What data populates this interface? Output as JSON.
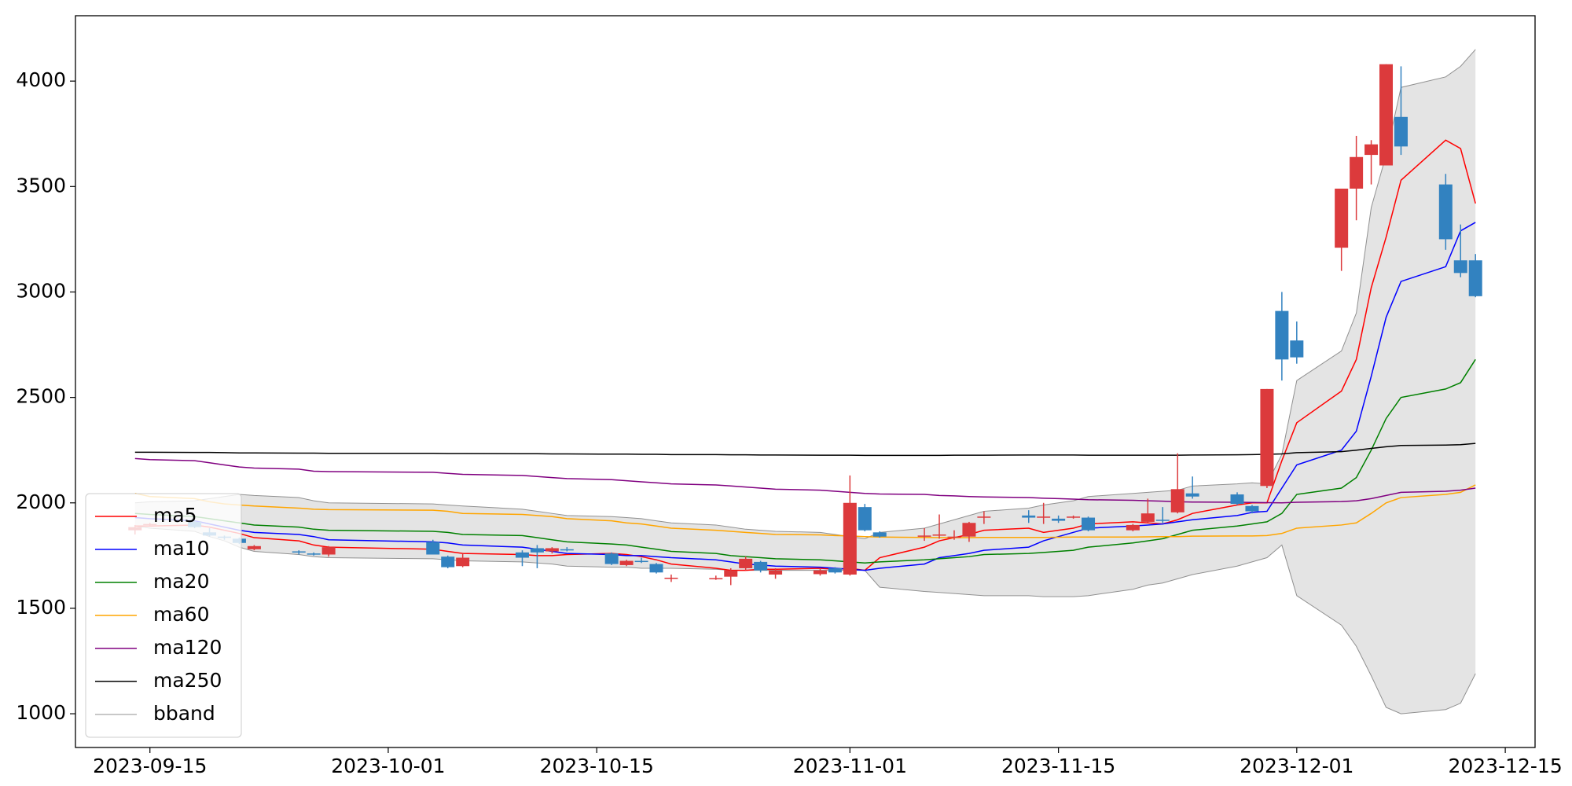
{
  "chart_data": {
    "type": "candlestick",
    "x": [
      "2023-09-14",
      "2023-09-15",
      "2023-09-18",
      "2023-09-19",
      "2023-09-20",
      "2023-09-21",
      "2023-09-22",
      "2023-09-25",
      "2023-09-26",
      "2023-09-27",
      "2023-10-04",
      "2023-10-05",
      "2023-10-06",
      "2023-10-10",
      "2023-10-11",
      "2023-10-12",
      "2023-10-13",
      "2023-10-16",
      "2023-10-17",
      "2023-10-18",
      "2023-10-19",
      "2023-10-20",
      "2023-10-23",
      "2023-10-24",
      "2023-10-25",
      "2023-10-26",
      "2023-10-27",
      "2023-10-30",
      "2023-10-31",
      "2023-11-01",
      "2023-11-02",
      "2023-11-03",
      "2023-11-06",
      "2023-11-07",
      "2023-11-08",
      "2023-11-09",
      "2023-11-10",
      "2023-11-13",
      "2023-11-14",
      "2023-11-15",
      "2023-11-16",
      "2023-11-17",
      "2023-11-20",
      "2023-11-21",
      "2023-11-22",
      "2023-11-23",
      "2023-11-24",
      "2023-11-27",
      "2023-11-28",
      "2023-11-29",
      "2023-11-30",
      "2023-12-01",
      "2023-12-04",
      "2023-12-05",
      "2023-12-06",
      "2023-12-07",
      "2023-12-08",
      "2023-12-11",
      "2023-12-12",
      "2023-12-13"
    ],
    "open": [
      1870,
      1895,
      1910,
      1860,
      1840,
      1830,
      1780,
      1770,
      1760,
      1755,
      1815,
      1745,
      1700,
      1765,
      1785,
      1770,
      1780,
      1760,
      1705,
      1725,
      1710,
      1640,
      1638,
      1650,
      1690,
      1720,
      1660,
      1662,
      1690,
      1660,
      1980,
      1860,
      1840,
      1845,
      1840,
      1840,
      1930,
      1940,
      1930,
      1925,
      1930,
      1930,
      1870,
      1910,
      1920,
      1955,
      2045,
      2040,
      1985,
      2080,
      2910,
      2770,
      3210,
      3490,
      3650,
      3600,
      3830,
      3510,
      3150,
      3150
    ],
    "high": [
      1895,
      1905,
      1915,
      1880,
      1845,
      1835,
      1800,
      1775,
      1765,
      1795,
      1825,
      1750,
      1760,
      1775,
      1800,
      1790,
      1790,
      1765,
      1730,
      1740,
      1715,
      1660,
      1655,
      1690,
      1745,
      1725,
      1690,
      1690,
      1695,
      2130,
      1995,
      1865,
      1880,
      1945,
      1870,
      1910,
      1960,
      1965,
      2000,
      1940,
      1940,
      1935,
      1900,
      2020,
      1980,
      2235,
      2125,
      2050,
      1990,
      2540,
      3000,
      2860,
      3490,
      3740,
      3720,
      4080,
      4070,
      3560,
      3320,
      3180
    ],
    "low": [
      1850,
      1890,
      1880,
      1840,
      1825,
      1805,
      1775,
      1755,
      1750,
      1745,
      1755,
      1690,
      1695,
      1700,
      1690,
      1760,
      1770,
      1705,
      1700,
      1715,
      1665,
      1625,
      1635,
      1610,
      1680,
      1670,
      1640,
      1655,
      1665,
      1655,
      1865,
      1835,
      1820,
      1830,
      1825,
      1815,
      1900,
      1905,
      1900,
      1905,
      1925,
      1865,
      1865,
      1905,
      1905,
      1950,
      2020,
      1990,
      1950,
      2070,
      2580,
      2660,
      3100,
      3340,
      3510,
      3600,
      3650,
      3200,
      3070,
      2975
    ],
    "close": [
      1885,
      1900,
      1885,
      1845,
      1835,
      1810,
      1795,
      1765,
      1755,
      1790,
      1755,
      1695,
      1740,
      1740,
      1765,
      1785,
      1775,
      1710,
      1725,
      1720,
      1670,
      1645,
      1643,
      1680,
      1735,
      1680,
      1680,
      1680,
      1670,
      2000,
      1870,
      1840,
      1845,
      1850,
      1840,
      1905,
      1935,
      1930,
      1935,
      1915,
      1935,
      1870,
      1895,
      1950,
      1915,
      2065,
      2030,
      1995,
      1960,
      2540,
      2680,
      2690,
      3490,
      3640,
      3700,
      4080,
      3690,
      3250,
      3090,
      2980
    ],
    "up_color": "#dc3a3c",
    "down_color": "#3282c0",
    "series": [
      {
        "name": "ma5",
        "color": "#ff0000",
        "values": [
          1890,
          1890,
          1895,
          1885,
          1870,
          1855,
          1835,
          1820,
          1800,
          1790,
          1780,
          1770,
          1760,
          1755,
          1750,
          1750,
          1755,
          1760,
          1755,
          1745,
          1730,
          1710,
          1690,
          1680,
          1680,
          1685,
          1685,
          1690,
          1685,
          1690,
          1680,
          1740,
          1790,
          1820,
          1835,
          1850,
          1870,
          1880,
          1860,
          1870,
          1880,
          1900,
          1910,
          1905,
          1900,
          1920,
          1950,
          1990,
          2000,
          2000,
          2200,
          2380,
          2530,
          2680,
          3020,
          3260,
          3530,
          3720,
          3680,
          3420
        ]
      },
      {
        "name": "ma10",
        "color": "#0000ff",
        "values": [
          1930,
          1925,
          1915,
          1900,
          1885,
          1870,
          1860,
          1850,
          1840,
          1825,
          1815,
          1810,
          1800,
          1790,
          1780,
          1770,
          1760,
          1755,
          1750,
          1750,
          1745,
          1740,
          1730,
          1720,
          1710,
          1705,
          1700,
          1695,
          1690,
          1685,
          1680,
          1690,
          1710,
          1740,
          1750,
          1760,
          1775,
          1790,
          1820,
          1840,
          1860,
          1880,
          1890,
          1895,
          1900,
          1910,
          1920,
          1940,
          1955,
          1960,
          2070,
          2180,
          2250,
          2340,
          2600,
          2880,
          3050,
          3120,
          3290,
          3330
        ]
      },
      {
        "name": "ma20",
        "color": "#008000",
        "values": [
          1950,
          1945,
          1935,
          1925,
          1915,
          1905,
          1895,
          1885,
          1875,
          1870,
          1865,
          1860,
          1850,
          1845,
          1835,
          1825,
          1815,
          1805,
          1800,
          1790,
          1780,
          1770,
          1760,
          1750,
          1745,
          1740,
          1735,
          1730,
          1725,
          1720,
          1715,
          1720,
          1730,
          1735,
          1740,
          1745,
          1755,
          1760,
          1765,
          1770,
          1775,
          1790,
          1810,
          1820,
          1830,
          1850,
          1870,
          1890,
          1900,
          1910,
          1950,
          2040,
          2070,
          2120,
          2250,
          2400,
          2500,
          2540,
          2570,
          2680
        ]
      },
      {
        "name": "ma60",
        "color": "#ffa500",
        "values": [
          2045,
          2030,
          2020,
          2005,
          1995,
          1990,
          1985,
          1975,
          1970,
          1968,
          1965,
          1960,
          1950,
          1945,
          1940,
          1935,
          1925,
          1915,
          1905,
          1900,
          1890,
          1880,
          1870,
          1865,
          1860,
          1855,
          1850,
          1848,
          1845,
          1843,
          1840,
          1838,
          1836,
          1835,
          1835,
          1835,
          1836,
          1836,
          1836,
          1837,
          1838,
          1838,
          1838,
          1839,
          1840,
          1840,
          1842,
          1843,
          1843,
          1845,
          1855,
          1880,
          1895,
          1905,
          1950,
          2000,
          2025,
          2040,
          2050,
          2085
        ]
      },
      {
        "name": "ma120",
        "color": "#800080",
        "values": [
          2210,
          2205,
          2200,
          2190,
          2180,
          2170,
          2165,
          2160,
          2150,
          2148,
          2145,
          2140,
          2135,
          2130,
          2125,
          2120,
          2115,
          2110,
          2105,
          2100,
          2095,
          2090,
          2085,
          2080,
          2075,
          2070,
          2065,
          2060,
          2055,
          2050,
          2045,
          2042,
          2040,
          2035,
          2033,
          2030,
          2028,
          2025,
          2022,
          2020,
          2018,
          2015,
          2012,
          2010,
          2008,
          2005,
          2004,
          2003,
          2002,
          2001,
          2000,
          2003,
          2006,
          2010,
          2020,
          2035,
          2050,
          2055,
          2060,
          2070
        ]
      },
      {
        "name": "ma250",
        "color": "#000000",
        "values": [
          2240,
          2240,
          2239,
          2239,
          2238,
          2237,
          2237,
          2236,
          2236,
          2235,
          2235,
          2234,
          2234,
          2233,
          2233,
          2232,
          2232,
          2231,
          2231,
          2230,
          2230,
          2229,
          2229,
          2228,
          2228,
          2227,
          2227,
          2226,
          2226,
          2226,
          2225,
          2225,
          2225,
          2225,
          2226,
          2226,
          2226,
          2227,
          2227,
          2227,
          2227,
          2226,
          2226,
          2226,
          2226,
          2226,
          2227,
          2228,
          2229,
          2230,
          2232,
          2238,
          2243,
          2250,
          2258,
          2266,
          2272,
          2274,
          2276,
          2282
        ]
      }
    ],
    "bband": {
      "name": "bband",
      "color": "#909090",
      "fill": "#e4e4e4",
      "upper": [
        2000,
        2005,
        2010,
        2020,
        2030,
        2040,
        2035,
        2025,
        2010,
        2000,
        1995,
        1990,
        1985,
        1970,
        1960,
        1950,
        1940,
        1935,
        1930,
        1925,
        1915,
        1905,
        1895,
        1885,
        1875,
        1870,
        1865,
        1860,
        1850,
        1840,
        1830,
        1860,
        1880,
        1900,
        1920,
        1940,
        1960,
        1975,
        1990,
        2000,
        2010,
        2030,
        2045,
        2050,
        2055,
        2060,
        2080,
        2090,
        2095,
        2090,
        2230,
        2580,
        2720,
        2900,
        3400,
        3650,
        3970,
        4020,
        4070,
        4150
      ],
      "lower": [
        1890,
        1880,
        1865,
        1840,
        1820,
        1790,
        1770,
        1755,
        1745,
        1740,
        1735,
        1730,
        1725,
        1720,
        1715,
        1710,
        1700,
        1695,
        1695,
        1690,
        1690,
        1690,
        1685,
        1680,
        1680,
        1680,
        1680,
        1680,
        1680,
        1680,
        1680,
        1600,
        1580,
        1575,
        1570,
        1565,
        1560,
        1560,
        1555,
        1555,
        1555,
        1560,
        1590,
        1610,
        1620,
        1640,
        1660,
        1700,
        1720,
        1740,
        1800,
        1560,
        1420,
        1320,
        1180,
        1030,
        1000,
        1020,
        1050,
        1190
      ]
    },
    "xlim": [
      "2023-09-10",
      "2023-12-17"
    ],
    "xticks": [
      "2023-09-15",
      "2023-10-01",
      "2023-10-15",
      "2023-11-01",
      "2023-11-15",
      "2023-12-01",
      "2023-12-15"
    ],
    "ylim": [
      840,
      4310
    ],
    "yticks": [
      1000,
      1500,
      2000,
      2500,
      3000,
      3500,
      4000
    ],
    "legend": "lower left"
  }
}
